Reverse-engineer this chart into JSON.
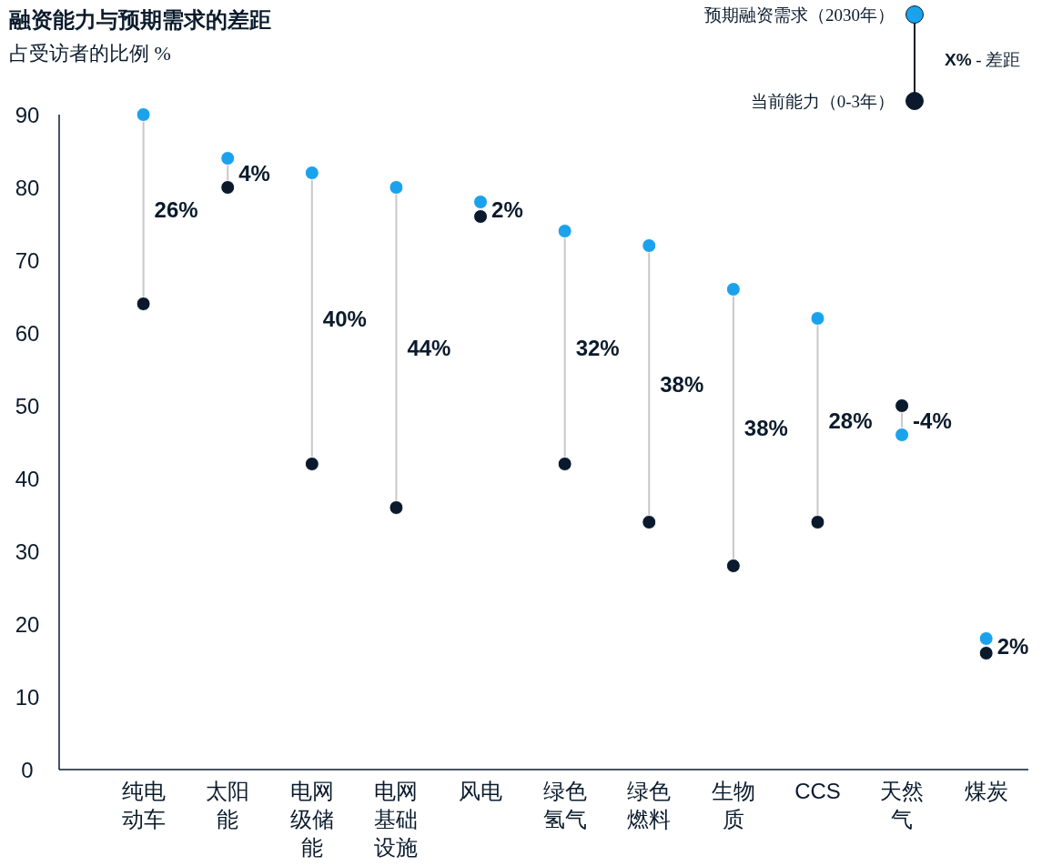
{
  "chart_data": {
    "type": "scatter",
    "title": "融资能力与预期需求的差距",
    "subtitle": "占受访者的比例 %",
    "categories": [
      "纯电动车",
      "太阳能",
      "电网级储能",
      "电网基础设施",
      "风电",
      "绿色氢气",
      "绿色燃料",
      "生物质",
      "CCS",
      "天然气",
      "煤炭"
    ],
    "series": [
      {
        "name": "预期融资需求（2030年）",
        "color": "#1aa3ec",
        "values": [
          90,
          84,
          82,
          80,
          78,
          74,
          72,
          66,
          62,
          46,
          18
        ]
      },
      {
        "name": "当前能力（0-3年）",
        "color": "#0a1a2c",
        "values": [
          64,
          80,
          42,
          36,
          76,
          42,
          34,
          28,
          34,
          50,
          16
        ]
      }
    ],
    "ylim": [
      0,
      90
    ],
    "yticks": [
      0,
      10,
      20,
      30,
      40,
      50,
      60,
      70,
      80,
      90
    ],
    "marker": "circle",
    "grid": false,
    "legend": "top right",
    "annotations": [
      "**X%** - 差距",
      "26%",
      "4%",
      "40%",
      "44%",
      "2%",
      "32%",
      "38%",
      "38%",
      "28%",
      "-4%",
      "2%"
    ]
  }
}
